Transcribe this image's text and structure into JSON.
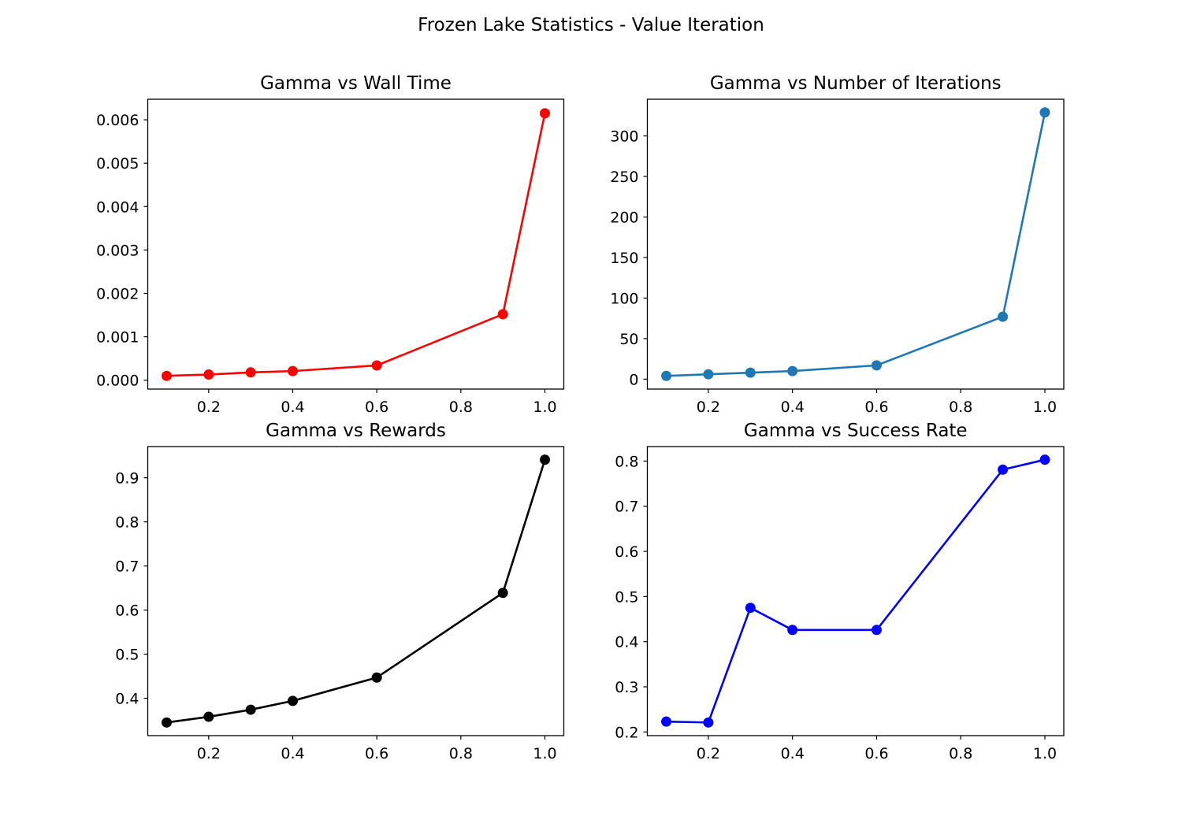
{
  "figure_title": "Frozen Lake Statistics - Value Iteration",
  "chart_data": [
    {
      "type": "line",
      "title": "Gamma vs Wall Time",
      "xlabel": "",
      "ylabel": "",
      "x": [
        0.1,
        0.2,
        0.3,
        0.4,
        0.6,
        0.9,
        1.0
      ],
      "series": [
        {
          "values": [
            0.0001,
            0.00013,
            0.00018,
            0.00021,
            0.00034,
            0.00152,
            0.00615
          ]
        }
      ],
      "xlim": [
        0.055,
        1.045
      ],
      "ylim": [
        -0.000205,
        0.006474
      ],
      "xticks": [
        0.2,
        0.4,
        0.6,
        0.8,
        1.0
      ],
      "xtick_labels": [
        "0.2",
        "0.4",
        "0.6",
        "0.8",
        "1.0"
      ],
      "yticks": [
        0,
        0.001,
        0.002,
        0.003,
        0.004,
        0.005,
        0.006
      ],
      "ytick_labels": [
        "0.000",
        "0.001",
        "0.002",
        "0.003",
        "0.004",
        "0.005",
        "0.006"
      ],
      "color": "#ff0000",
      "grid": false,
      "legend": "none"
    },
    {
      "type": "line",
      "title": "Gamma vs Number of Iterations",
      "xlabel": "",
      "ylabel": "",
      "x": [
        0.1,
        0.2,
        0.3,
        0.4,
        0.6,
        0.9,
        1.0
      ],
      "series": [
        {
          "values": [
            4,
            6,
            8,
            10,
            17,
            77,
            329
          ]
        }
      ],
      "xlim": [
        0.055,
        1.045
      ],
      "ylim": [
        -12.25,
        345.25
      ],
      "xticks": [
        0.2,
        0.4,
        0.6,
        0.8,
        1.0
      ],
      "xtick_labels": [
        "0.2",
        "0.4",
        "0.6",
        "0.8",
        "1.0"
      ],
      "yticks": [
        0,
        50,
        100,
        150,
        200,
        250,
        300
      ],
      "ytick_labels": [
        "0",
        "50",
        "100",
        "150",
        "200",
        "250",
        "300"
      ],
      "color": "#1f77b4",
      "grid": false,
      "legend": "none"
    },
    {
      "type": "line",
      "title": "Gamma vs Rewards",
      "xlabel": "",
      "ylabel": "",
      "x": [
        0.1,
        0.2,
        0.3,
        0.4,
        0.6,
        0.9,
        1.0
      ],
      "series": [
        {
          "values": [
            0.345,
            0.358,
            0.374,
            0.394,
            0.447,
            0.639,
            0.941
          ]
        }
      ],
      "xlim": [
        0.055,
        1.045
      ],
      "ylim": [
        0.3152,
        0.9708
      ],
      "xticks": [
        0.2,
        0.4,
        0.6,
        0.8,
        1.0
      ],
      "xtick_labels": [
        "0.2",
        "0.4",
        "0.6",
        "0.8",
        "1.0"
      ],
      "yticks": [
        0.4,
        0.5,
        0.6,
        0.7,
        0.8,
        0.9
      ],
      "ytick_labels": [
        "0.4",
        "0.5",
        "0.6",
        "0.7",
        "0.8",
        "0.9"
      ],
      "color": "#000000",
      "grid": false,
      "legend": "none"
    },
    {
      "type": "line",
      "title": "Gamma vs Success Rate",
      "xlabel": "",
      "ylabel": "",
      "x": [
        0.1,
        0.2,
        0.3,
        0.4,
        0.6,
        0.9,
        1.0
      ],
      "series": [
        {
          "values": [
            0.223,
            0.221,
            0.475,
            0.426,
            0.426,
            0.781,
            0.803
          ]
        }
      ],
      "xlim": [
        0.055,
        1.045
      ],
      "ylim": [
        0.1919,
        0.8321
      ],
      "xticks": [
        0.2,
        0.4,
        0.6,
        0.8,
        1.0
      ],
      "xtick_labels": [
        "0.2",
        "0.4",
        "0.6",
        "0.8",
        "1.0"
      ],
      "yticks": [
        0.2,
        0.3,
        0.4,
        0.5,
        0.6,
        0.7,
        0.8
      ],
      "ytick_labels": [
        "0.2",
        "0.3",
        "0.4",
        "0.5",
        "0.6",
        "0.7",
        "0.8"
      ],
      "color": "#0000ff",
      "grid": false,
      "legend": "none"
    }
  ]
}
